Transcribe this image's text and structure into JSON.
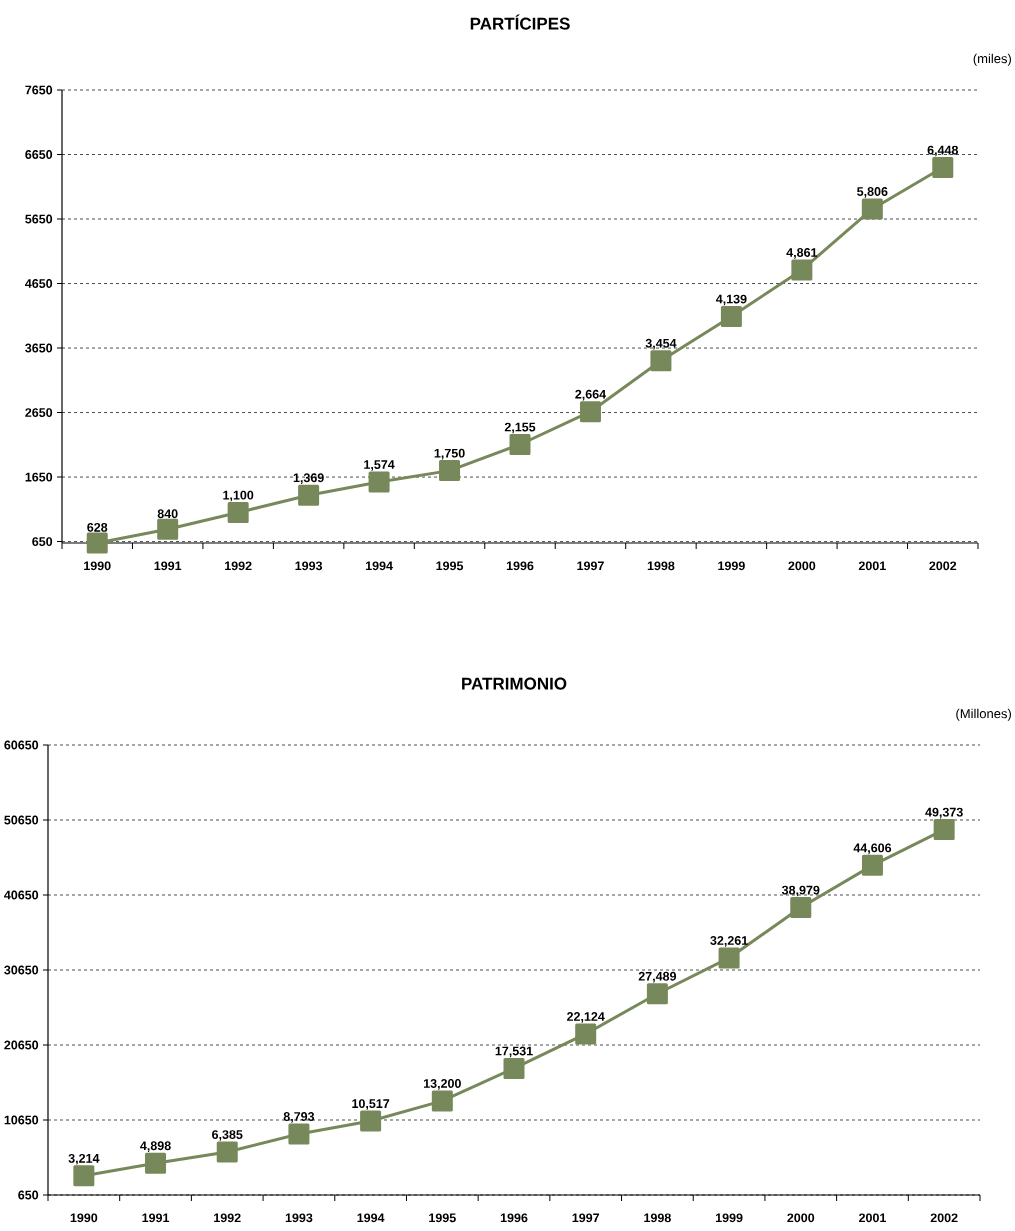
{
  "chart_data": [
    {
      "type": "line",
      "title": "PARTÍCIPES",
      "annotations": [
        "(miles)"
      ],
      "categories": [
        "1990",
        "1991",
        "1992",
        "1993",
        "1994",
        "1995",
        "1996",
        "1997",
        "1998",
        "1999",
        "2000",
        "2001",
        "2002"
      ],
      "series": [
        {
          "color": "#77895a",
          "values": [
            628,
            840,
            1100,
            1369,
            1574,
            1750,
            2155,
            2664,
            3454,
            4139,
            4861,
            5806,
            6448
          ],
          "value_labels": [
            "628",
            "840",
            "1,100",
            "1,369",
            "1,574",
            "1,750",
            "2,155",
            "2,664",
            "3,454",
            "4,139",
            "4,861",
            "5,806",
            "6,448"
          ]
        }
      ],
      "ylim": [
        628,
        7650
      ],
      "yticks": [
        650,
        1650,
        2650,
        3650,
        4650,
        5650,
        6650,
        7650
      ],
      "grid": "y",
      "marker": "square",
      "line_style": "solid"
    },
    {
      "type": "line",
      "title": "PATRIMONIO",
      "annotations": [
        "(Millones)"
      ],
      "categories": [
        "1990",
        "1991",
        "1992",
        "1993",
        "1994",
        "1995",
        "1996",
        "1997",
        "1998",
        "1999",
        "2000",
        "2001",
        "2002"
      ],
      "series": [
        {
          "color": "#77895a",
          "values": [
            3214,
            4898,
            6385,
            8793,
            10517,
            13200,
            17531,
            22124,
            27489,
            32261,
            38979,
            44606,
            49373
          ],
          "value_labels": [
            "3,214",
            "4,898",
            "6,385",
            "8,793",
            "10,517",
            "13,200",
            "17,531",
            "22,124",
            "27,489",
            "32,261",
            "38,979",
            "44,606",
            "49,373"
          ]
        }
      ],
      "ylim": [
        650,
        60650
      ],
      "yticks": [
        650,
        10650,
        20650,
        30650,
        40650,
        50650,
        60650
      ],
      "grid": "y",
      "marker": "square",
      "line_style": "solid"
    }
  ]
}
